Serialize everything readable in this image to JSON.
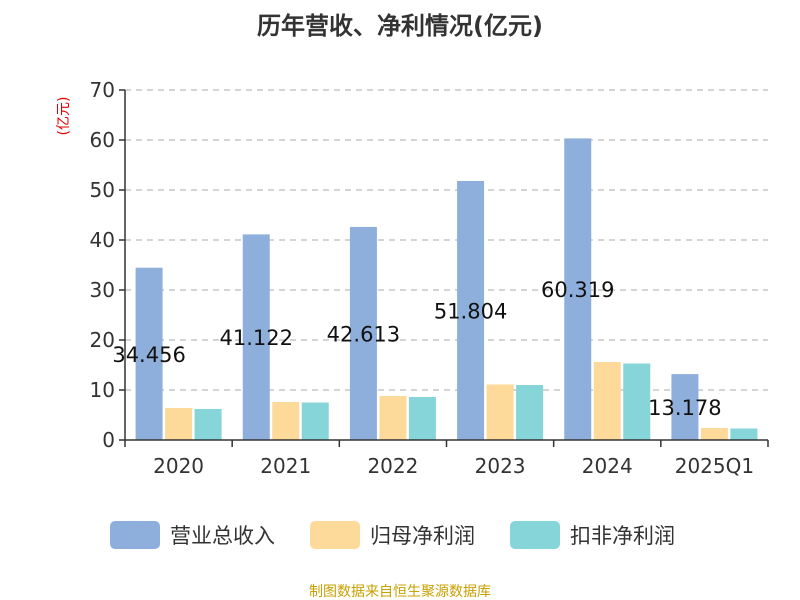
{
  "chart_data": {
    "type": "bar",
    "title": "历年营收、净利情况(亿元)",
    "ylabel": "(亿元)",
    "ylim": [
      0,
      70
    ],
    "yticks": [
      0,
      10,
      20,
      30,
      40,
      50,
      60,
      70
    ],
    "grid": true,
    "categories": [
      "2020",
      "2021",
      "2022",
      "2023",
      "2024",
      "2025Q1"
    ],
    "series": [
      {
        "name": "营业总收入",
        "color": "#8eaedb",
        "values": [
          34.456,
          41.122,
          42.613,
          51.804,
          60.319,
          13.178
        ]
      },
      {
        "name": "归母净利润",
        "color": "#fdd99a",
        "values": [
          6.4,
          7.6,
          8.8,
          11.1,
          15.6,
          2.4
        ]
      },
      {
        "name": "扣非净利润",
        "color": "#86d5d8",
        "values": [
          6.2,
          7.5,
          8.6,
          11.0,
          15.3,
          2.3
        ]
      }
    ],
    "data_labels": [
      "34.456",
      "41.122",
      "42.613",
      "51.804",
      "60.319",
      "13.178"
    ],
    "legend_position": "bottom"
  },
  "source_text": "制图数据来自恒生聚源数据库"
}
